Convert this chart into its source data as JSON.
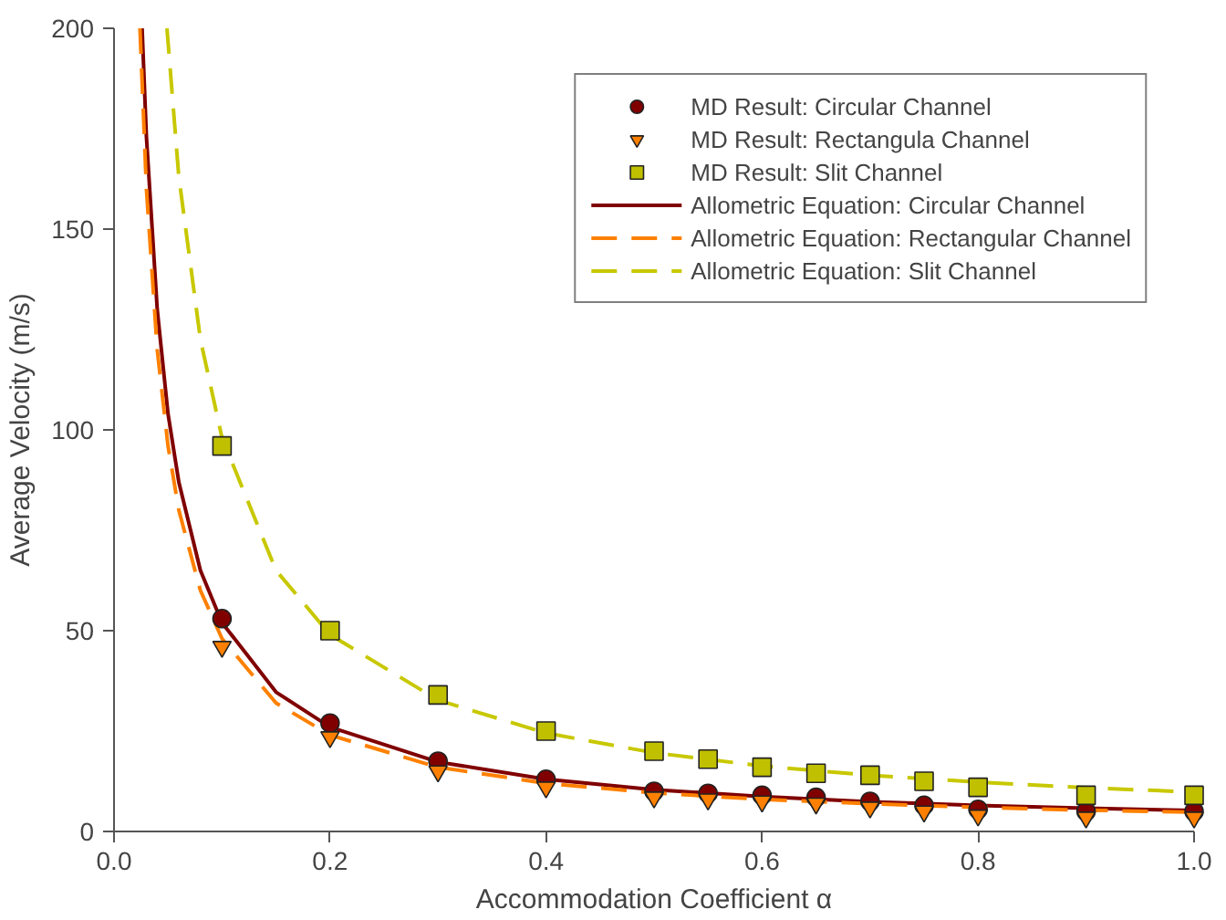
{
  "chart_data": {
    "type": "scatter",
    "xlabel": "Accommodation Coefficient α",
    "ylabel": "Average Velocity (m/s)",
    "xlim": [
      0,
      1
    ],
    "ylim": [
      0,
      200
    ],
    "xticks": [
      {
        "value": 0,
        "label": "0.0"
      },
      0.2,
      0.4,
      0.6,
      0.8,
      {
        "value": 1,
        "label": "1.0"
      }
    ],
    "yticks": [
      0,
      50,
      100,
      150,
      200
    ],
    "grid": false,
    "legend": "top right",
    "series": [
      {
        "name": "MD Result: Circular Channel",
        "marker": "circle",
        "color": "#800000",
        "x": [
          0.1,
          0.2,
          0.3,
          0.4,
          0.5,
          0.55,
          0.6,
          0.65,
          0.7,
          0.75,
          0.8,
          0.9,
          1.0
        ],
        "values": [
          53,
          27,
          17.5,
          13,
          10,
          9.5,
          9,
          8.5,
          7.5,
          6.5,
          5.5,
          5,
          5
        ]
      },
      {
        "name": "MD Result: Rectangula Channel",
        "marker": "triangle",
        "color": "#ff8000",
        "x": [
          0.1,
          0.2,
          0.3,
          0.4,
          0.5,
          0.55,
          0.6,
          0.65,
          0.7,
          0.75,
          0.8,
          0.9,
          1.0
        ],
        "values": [
          46,
          23.5,
          15,
          11,
          8.5,
          8,
          7.5,
          7,
          6,
          5,
          4,
          3.5,
          3.5
        ]
      },
      {
        "name": "MD Result: Slit Channel",
        "marker": "square",
        "color": "#c0c000",
        "x": [
          0.1,
          0.2,
          0.3,
          0.4,
          0.5,
          0.55,
          0.6,
          0.65,
          0.7,
          0.75,
          0.8,
          0.9,
          1.0
        ],
        "values": [
          96,
          50,
          34,
          25,
          20,
          18,
          16,
          14.5,
          14,
          12.5,
          11,
          9,
          9
        ]
      },
      {
        "name": "Allometric Equation: Circular Channel",
        "type": "line",
        "line_style": "solid",
        "color": "#800000",
        "x": [
          0.026,
          0.03,
          0.04,
          0.05,
          0.06,
          0.08,
          0.1,
          0.15,
          0.2,
          0.3,
          0.4,
          0.5,
          0.6,
          0.7,
          0.8,
          0.9,
          1.0
        ],
        "values": [
          200,
          173,
          130,
          104,
          87,
          65,
          52,
          34.7,
          26,
          17.3,
          13,
          10.4,
          8.7,
          7.4,
          6.5,
          5.8,
          5.2
        ]
      },
      {
        "name": "Allometric Equation: Rectangular Channel",
        "type": "line",
        "line_style": "dashed",
        "color": "#ff8000",
        "x": [
          0.024,
          0.03,
          0.04,
          0.05,
          0.06,
          0.08,
          0.1,
          0.15,
          0.2,
          0.3,
          0.4,
          0.5,
          0.6,
          0.7,
          0.8,
          0.9,
          1.0
        ],
        "values": [
          200,
          160,
          120,
          96,
          80,
          60,
          48,
          32,
          24,
          16,
          12,
          9.6,
          8,
          6.9,
          6,
          5.3,
          4.8
        ]
      },
      {
        "name": "Allometric Equation: Slit Channel",
        "type": "line",
        "line_style": "dashed",
        "color": "#c8c800",
        "x": [
          0.049,
          0.06,
          0.08,
          0.1,
          0.15,
          0.2,
          0.3,
          0.4,
          0.5,
          0.6,
          0.7,
          0.8,
          0.9,
          1.0
        ],
        "values": [
          200,
          163,
          122.5,
          98,
          65,
          49,
          32.7,
          24.5,
          19.6,
          16.3,
          14,
          12.3,
          10.9,
          9.8
        ]
      }
    ]
  }
}
